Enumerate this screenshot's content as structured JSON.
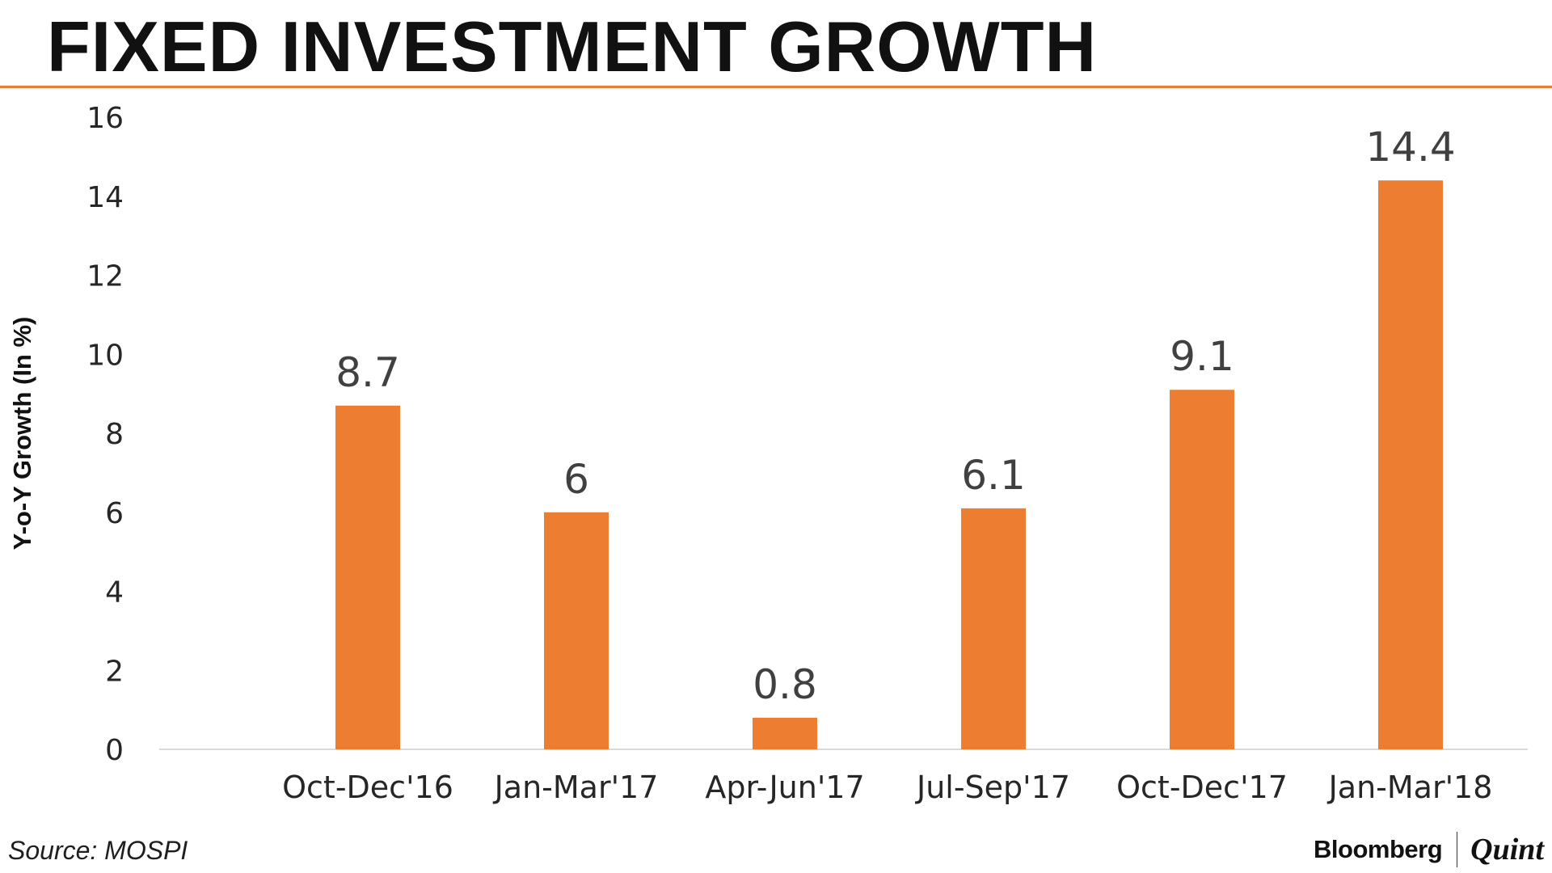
{
  "title": "FIXED INVESTMENT GROWTH",
  "source": "Source: MOSPI",
  "brand": {
    "primary": "Bloomberg",
    "secondary": "Quint"
  },
  "colors": {
    "accent": "#e87e2f",
    "bar": "#ed7d31",
    "text": "#111111",
    "label": "#404040"
  },
  "chart_data": {
    "type": "bar",
    "ylabel": "Y-o-Y Growth (In %)",
    "xlabel": "",
    "ylim": [
      0,
      16
    ],
    "yticks": [
      0,
      2,
      4,
      6,
      8,
      10,
      12,
      14,
      16
    ],
    "grid": false,
    "legend": "none",
    "categories": [
      "Oct-Dec'16",
      "Jan-Mar'17",
      "Apr-Jun'17",
      "Jul-Sep'17",
      "Oct-Dec'17",
      "Jan-Mar'18"
    ],
    "values": [
      8.7,
      6,
      0.8,
      6.1,
      9.1,
      14.4
    ],
    "data_labels": [
      "8.7",
      "6",
      "0.8",
      "6.1",
      "9.1",
      "14.4"
    ]
  }
}
